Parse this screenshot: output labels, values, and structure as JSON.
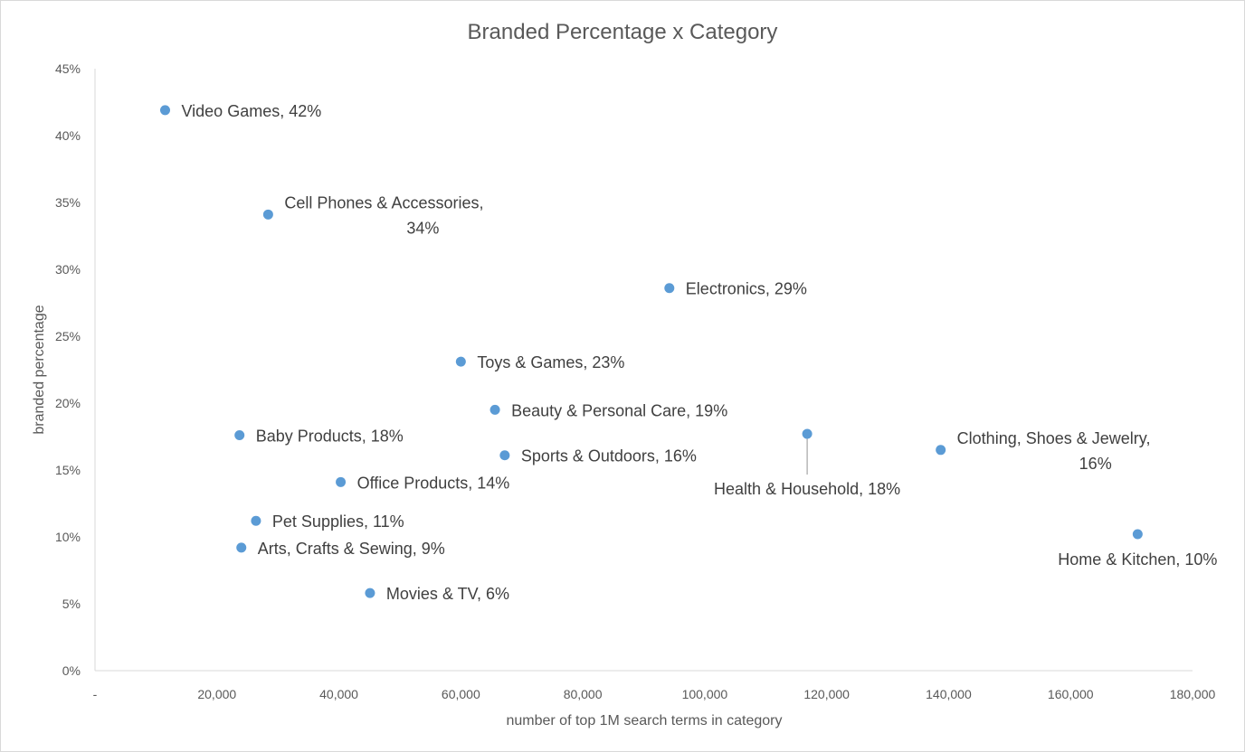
{
  "chart_data": {
    "type": "scatter",
    "title": "Branded Percentage x Category",
    "xlabel": "number of top 1M search terms in category",
    "ylabel": "branded percentage",
    "xlim": [
      0,
      180000
    ],
    "ylim": [
      0,
      0.45
    ],
    "x_ticks": [
      {
        "value": 0,
        "label": "-"
      },
      {
        "value": 20000,
        "label": "20,000"
      },
      {
        "value": 40000,
        "label": "40,000"
      },
      {
        "value": 60000,
        "label": "60,000"
      },
      {
        "value": 80000,
        "label": "80,000"
      },
      {
        "value": 100000,
        "label": "100,000"
      },
      {
        "value": 120000,
        "label": "120,000"
      },
      {
        "value": 140000,
        "label": "140,000"
      },
      {
        "value": 160000,
        "label": "160,000"
      },
      {
        "value": 180000,
        "label": "180,000"
      }
    ],
    "y_ticks": [
      {
        "value": 0,
        "label": "0%"
      },
      {
        "value": 0.05,
        "label": "5%"
      },
      {
        "value": 0.1,
        "label": "10%"
      },
      {
        "value": 0.15,
        "label": "15%"
      },
      {
        "value": 0.2,
        "label": "20%"
      },
      {
        "value": 0.25,
        "label": "25%"
      },
      {
        "value": 0.3,
        "label": "30%"
      },
      {
        "value": 0.35,
        "label": "35%"
      },
      {
        "value": 0.4,
        "label": "40%"
      },
      {
        "value": 0.45,
        "label": "45%"
      }
    ],
    "grid": false,
    "marker_color": "#5b9bd5",
    "points": [
      {
        "name": "Video Games",
        "x": 11500,
        "y": 0.419,
        "label_lines": [
          "Video Games, 42%"
        ]
      },
      {
        "name": "Cell Phones & Accessories",
        "x": 28400,
        "y": 0.341,
        "label_lines": [
          "Cell Phones & Accessories,",
          "34%"
        ]
      },
      {
        "name": "Electronics",
        "x": 94200,
        "y": 0.286,
        "label_lines": [
          "Electronics, 29%"
        ]
      },
      {
        "name": "Toys & Games",
        "x": 60000,
        "y": 0.231,
        "label_lines": [
          "Toys & Games, 23%"
        ]
      },
      {
        "name": "Beauty & Personal Care",
        "x": 65600,
        "y": 0.195,
        "label_lines": [
          "Beauty & Personal Care, 19%"
        ]
      },
      {
        "name": "Baby Products",
        "x": 23700,
        "y": 0.176,
        "label_lines": [
          "Baby Products, 18%"
        ]
      },
      {
        "name": "Health & Household",
        "x": 116800,
        "y": 0.177,
        "label_lines": [
          "Health & Household, 18%"
        ]
      },
      {
        "name": "Sports & Outdoors",
        "x": 67200,
        "y": 0.161,
        "label_lines": [
          "Sports & Outdoors, 16%"
        ]
      },
      {
        "name": "Clothing, Shoes & Jewelry",
        "x": 138700,
        "y": 0.165,
        "label_lines": [
          "Clothing, Shoes & Jewelry,",
          "16%"
        ]
      },
      {
        "name": "Office Products",
        "x": 40300,
        "y": 0.141,
        "label_lines": [
          "Office Products, 14%"
        ]
      },
      {
        "name": "Pet Supplies",
        "x": 26400,
        "y": 0.112,
        "label_lines": [
          "Pet Supplies, 11%"
        ]
      },
      {
        "name": "Home & Kitchen",
        "x": 171000,
        "y": 0.102,
        "label_lines": [
          "Home & Kitchen, 10%"
        ]
      },
      {
        "name": "Arts, Crafts & Sewing",
        "x": 24000,
        "y": 0.092,
        "label_lines": [
          "Arts, Crafts & Sewing, 9%"
        ]
      },
      {
        "name": "Movies & TV",
        "x": 45100,
        "y": 0.058,
        "label_lines": [
          "Movies & TV, 6%"
        ]
      }
    ]
  }
}
